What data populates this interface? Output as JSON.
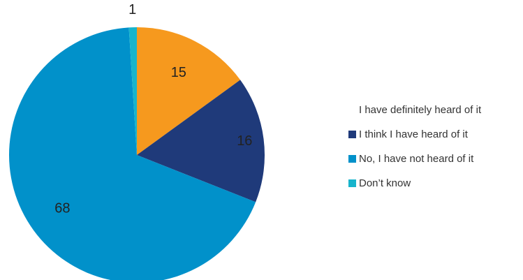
{
  "chart_data": {
    "type": "pie",
    "categories": [
      "I have definitely heard of it",
      "I think I have heard of it",
      "No, I have not heard of it",
      "Don’t know"
    ],
    "values": [
      15,
      16,
      68,
      1
    ],
    "data_labels": [
      "15",
      "16",
      "68",
      "1"
    ],
    "colors": [
      "#F6991E",
      "#1F3A7A",
      "#0191CA",
      "#17B4CC"
    ],
    "legend_swatch_visible": [
      false,
      true,
      true,
      true
    ],
    "legend_position": "right",
    "start_angle": "top, clockwise"
  }
}
